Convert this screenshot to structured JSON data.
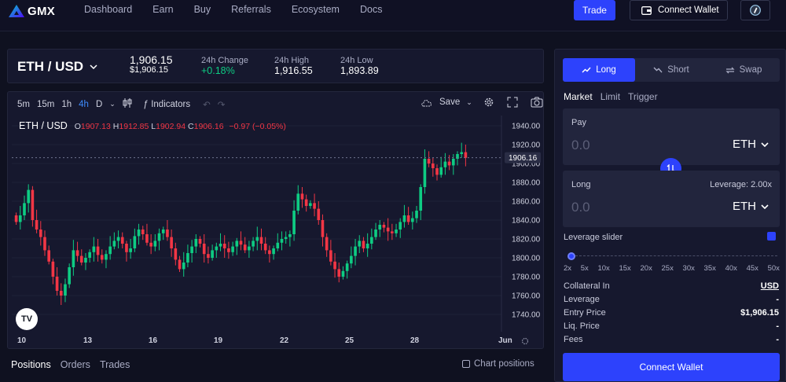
{
  "header": {
    "logo_text": "GMX",
    "nav": [
      "Dashboard",
      "Earn",
      "Buy",
      "Referrals",
      "Ecosystem",
      "Docs"
    ],
    "trade_label": "Trade",
    "connect_label": "Connect Wallet"
  },
  "ticker": {
    "symbol": "ETH / USD",
    "price": "1,906.15",
    "price_usd": "$1,906.15",
    "change_label": "24h Change",
    "change_value": "+0.18%",
    "high_label": "24h High",
    "high_value": "1,916.55",
    "low_label": "24h Low",
    "low_value": "1,893.89"
  },
  "toolbar": {
    "intervals": [
      "5m",
      "15m",
      "1h",
      "4h",
      "D"
    ],
    "active_interval": "4h",
    "indicators_label": "Indicators",
    "save_label": "Save"
  },
  "ohlc": {
    "symbol": "ETH / USD",
    "o_label": "O",
    "o": "1907.13",
    "h_label": "H",
    "h": "1912.85",
    "l_label": "L",
    "l": "1902.94",
    "c_label": "C",
    "c": "1906.16",
    "change": "−0.97 (−0.05%)"
  },
  "chart_data": {
    "type": "candlestick",
    "y_ticks": [
      "1940.00",
      "1920.00",
      "1900.00",
      "1880.00",
      "1860.00",
      "1840.00",
      "1820.00",
      "1800.00",
      "1780.00",
      "1760.00",
      "1740.00"
    ],
    "ylim": [
      1730,
      1945
    ],
    "x_ticks": [
      "10",
      "13",
      "16",
      "19",
      "22",
      "25",
      "28",
      "Jun"
    ],
    "last_price": "1906.16",
    "closes": [
      1838,
      1845,
      1858,
      1872,
      1840,
      1830,
      1822,
      1808,
      1796,
      1780,
      1765,
      1760,
      1772,
      1790,
      1808,
      1802,
      1795,
      1800,
      1806,
      1812,
      1803,
      1798,
      1804,
      1812,
      1818,
      1822,
      1815,
      1806,
      1810,
      1823,
      1830,
      1825,
      1816,
      1812,
      1818,
      1826,
      1830,
      1822,
      1810,
      1798,
      1788,
      1795,
      1805,
      1812,
      1820,
      1815,
      1804,
      1800,
      1808,
      1812,
      1815,
      1810,
      1806,
      1812,
      1818,
      1814,
      1808,
      1812,
      1818,
      1822,
      1815,
      1808,
      1804,
      1810,
      1816,
      1820,
      1822,
      1825,
      1850,
      1868,
      1862,
      1855,
      1858,
      1852,
      1840,
      1822,
      1808,
      1796,
      1788,
      1780,
      1786,
      1794,
      1802,
      1812,
      1818,
      1810,
      1815,
      1822,
      1830,
      1835,
      1832,
      1828,
      1826,
      1830,
      1838,
      1845,
      1838,
      1842,
      1850,
      1875,
      1905,
      1900,
      1895,
      1888,
      1896,
      1902,
      1898,
      1905,
      1910,
      1912,
      1906
    ],
    "candle_count": 111
  },
  "bottom_tabs": [
    "Positions",
    "Orders",
    "Trades"
  ],
  "active_tab": "Positions",
  "chart_positions_label": "Chart positions",
  "panel": {
    "modes": [
      {
        "label": "Long",
        "active": true
      },
      {
        "label": "Short",
        "active": false
      },
      {
        "label": "Swap",
        "active": false
      }
    ],
    "order_types": [
      "Market",
      "Limit",
      "Trigger"
    ],
    "active_order_type": "Market",
    "pay_label": "Pay",
    "pay_value": "0.0",
    "pay_token": "ETH",
    "long_label": "Long",
    "leverage_label": "Leverage: 2.00x",
    "long_value": "0.0",
    "long_token": "ETH",
    "slider_label": "Leverage slider",
    "slider_marks": [
      "2x",
      "5x",
      "10x",
      "15x",
      "20x",
      "25x",
      "30x",
      "35x",
      "40x",
      "45x",
      "50x"
    ],
    "details": [
      {
        "label": "Collateral In",
        "value": "USD"
      },
      {
        "label": "Leverage",
        "value": "-"
      },
      {
        "label": "Entry Price",
        "value": "$1,906.15"
      },
      {
        "label": "Liq. Price",
        "value": "-"
      },
      {
        "label": "Fees",
        "value": "-"
      }
    ],
    "connect_label": "Connect Wallet"
  },
  "colors": {
    "accent": "#2d42fc",
    "up": "#0ecc83",
    "down": "#f23645",
    "bg": "#0f1120"
  }
}
